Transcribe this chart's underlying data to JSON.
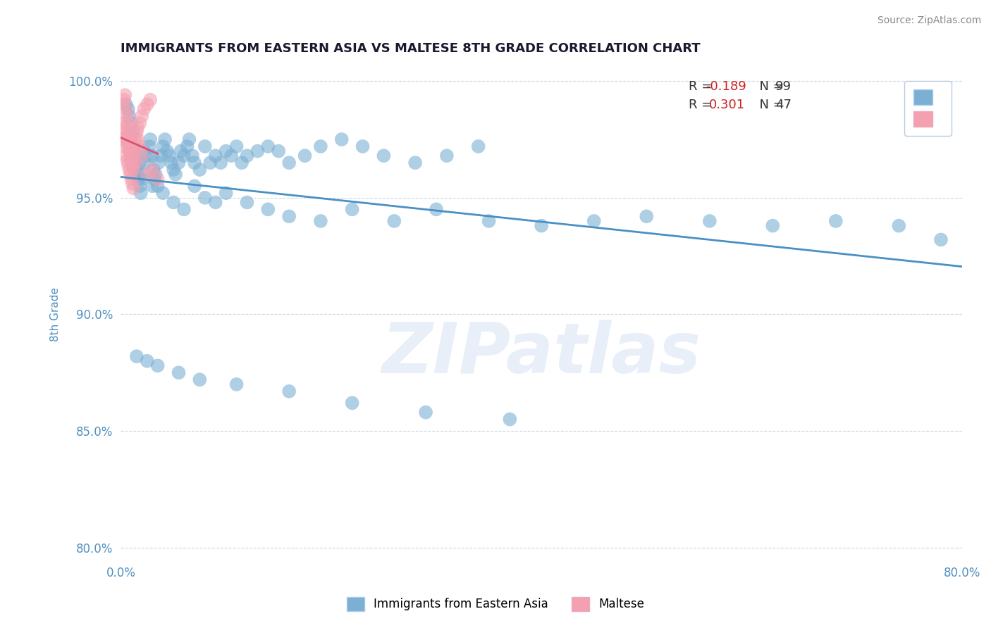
{
  "title": "IMMIGRANTS FROM EASTERN ASIA VS MALTESE 8TH GRADE CORRELATION CHART",
  "source": "Source: ZipAtlas.com",
  "ylabel": "8th Grade",
  "blue_label": "Immigrants from Eastern Asia",
  "pink_label": "Maltese",
  "blue_R": -0.189,
  "blue_N": 99,
  "pink_R": 0.301,
  "pink_N": 47,
  "blue_color": "#7bafd4",
  "pink_color": "#f4a0b0",
  "trend_blue": "#4a90c4",
  "trend_pink": "#e05070",
  "xlim": [
    0.0,
    0.8
  ],
  "ylim": [
    0.795,
    1.005
  ],
  "xticks": [
    0.0,
    0.1,
    0.2,
    0.3,
    0.4,
    0.5,
    0.6,
    0.7,
    0.8
  ],
  "yticks": [
    0.8,
    0.85,
    0.9,
    0.95,
    1.0
  ],
  "xtick_labels": [
    "0.0%",
    "",
    "",
    "",
    "",
    "",
    "",
    "",
    "80.0%"
  ],
  "ytick_labels": [
    "80.0%",
    "85.0%",
    "90.0%",
    "95.0%",
    "100.0%"
  ],
  "blue_x": [
    0.005,
    0.007,
    0.008,
    0.01,
    0.01,
    0.011,
    0.012,
    0.012,
    0.013,
    0.014,
    0.015,
    0.016,
    0.017,
    0.018,
    0.018,
    0.019,
    0.02,
    0.022,
    0.023,
    0.025,
    0.027,
    0.028,
    0.03,
    0.031,
    0.032,
    0.033,
    0.035,
    0.036,
    0.038,
    0.04,
    0.042,
    0.044,
    0.046,
    0.048,
    0.05,
    0.052,
    0.055,
    0.057,
    0.06,
    0.063,
    0.065,
    0.068,
    0.07,
    0.075,
    0.08,
    0.085,
    0.09,
    0.095,
    0.1,
    0.105,
    0.11,
    0.115,
    0.12,
    0.13,
    0.14,
    0.15,
    0.16,
    0.175,
    0.19,
    0.21,
    0.23,
    0.25,
    0.28,
    0.31,
    0.34,
    0.02,
    0.03,
    0.04,
    0.05,
    0.06,
    0.07,
    0.08,
    0.09,
    0.1,
    0.12,
    0.14,
    0.16,
    0.19,
    0.22,
    0.26,
    0.3,
    0.35,
    0.4,
    0.45,
    0.5,
    0.56,
    0.62,
    0.68,
    0.74,
    0.78,
    0.015,
    0.025,
    0.035,
    0.055,
    0.075,
    0.11,
    0.16,
    0.22,
    0.29,
    0.37
  ],
  "blue_y": [
    0.99,
    0.988,
    0.985,
    0.982,
    0.975,
    0.978,
    0.972,
    0.968,
    0.97,
    0.965,
    0.962,
    0.96,
    0.958,
    0.965,
    0.955,
    0.952,
    0.96,
    0.97,
    0.965,
    0.968,
    0.972,
    0.975,
    0.968,
    0.962,
    0.958,
    0.96,
    0.955,
    0.965,
    0.968,
    0.972,
    0.975,
    0.97,
    0.968,
    0.965,
    0.962,
    0.96,
    0.965,
    0.97,
    0.968,
    0.972,
    0.975,
    0.968,
    0.965,
    0.962,
    0.972,
    0.965,
    0.968,
    0.965,
    0.97,
    0.968,
    0.972,
    0.965,
    0.968,
    0.97,
    0.972,
    0.97,
    0.965,
    0.968,
    0.972,
    0.975,
    0.972,
    0.968,
    0.965,
    0.968,
    0.972,
    0.958,
    0.955,
    0.952,
    0.948,
    0.945,
    0.955,
    0.95,
    0.948,
    0.952,
    0.948,
    0.945,
    0.942,
    0.94,
    0.945,
    0.94,
    0.945,
    0.94,
    0.938,
    0.94,
    0.942,
    0.94,
    0.938,
    0.94,
    0.938,
    0.932,
    0.882,
    0.88,
    0.878,
    0.875,
    0.872,
    0.87,
    0.867,
    0.862,
    0.858,
    0.855
  ],
  "pink_x": [
    0.002,
    0.003,
    0.003,
    0.004,
    0.004,
    0.005,
    0.005,
    0.006,
    0.006,
    0.007,
    0.007,
    0.008,
    0.008,
    0.009,
    0.009,
    0.01,
    0.01,
    0.011,
    0.011,
    0.012,
    0.012,
    0.013,
    0.014,
    0.015,
    0.016,
    0.018,
    0.02,
    0.022,
    0.025,
    0.028,
    0.002,
    0.003,
    0.004,
    0.005,
    0.006,
    0.007,
    0.008,
    0.009,
    0.01,
    0.012,
    0.014,
    0.016,
    0.018,
    0.02,
    0.025,
    0.03,
    0.035
  ],
  "pink_y": [
    0.978,
    0.982,
    0.975,
    0.98,
    0.972,
    0.976,
    0.968,
    0.974,
    0.966,
    0.972,
    0.964,
    0.97,
    0.962,
    0.968,
    0.96,
    0.966,
    0.958,
    0.964,
    0.956,
    0.962,
    0.954,
    0.972,
    0.975,
    0.978,
    0.98,
    0.982,
    0.985,
    0.988,
    0.99,
    0.992,
    0.99,
    0.992,
    0.994,
    0.988,
    0.985,
    0.982,
    0.978,
    0.975,
    0.972,
    0.968,
    0.965,
    0.975,
    0.972,
    0.968,
    0.96,
    0.962,
    0.958
  ],
  "watermark": "ZIPatlas",
  "background_color": "#ffffff",
  "grid_color": "#c8d8e8",
  "title_color": "#1a1a2e",
  "axis_label_color": "#5090c0",
  "tick_color": "#5090c0"
}
